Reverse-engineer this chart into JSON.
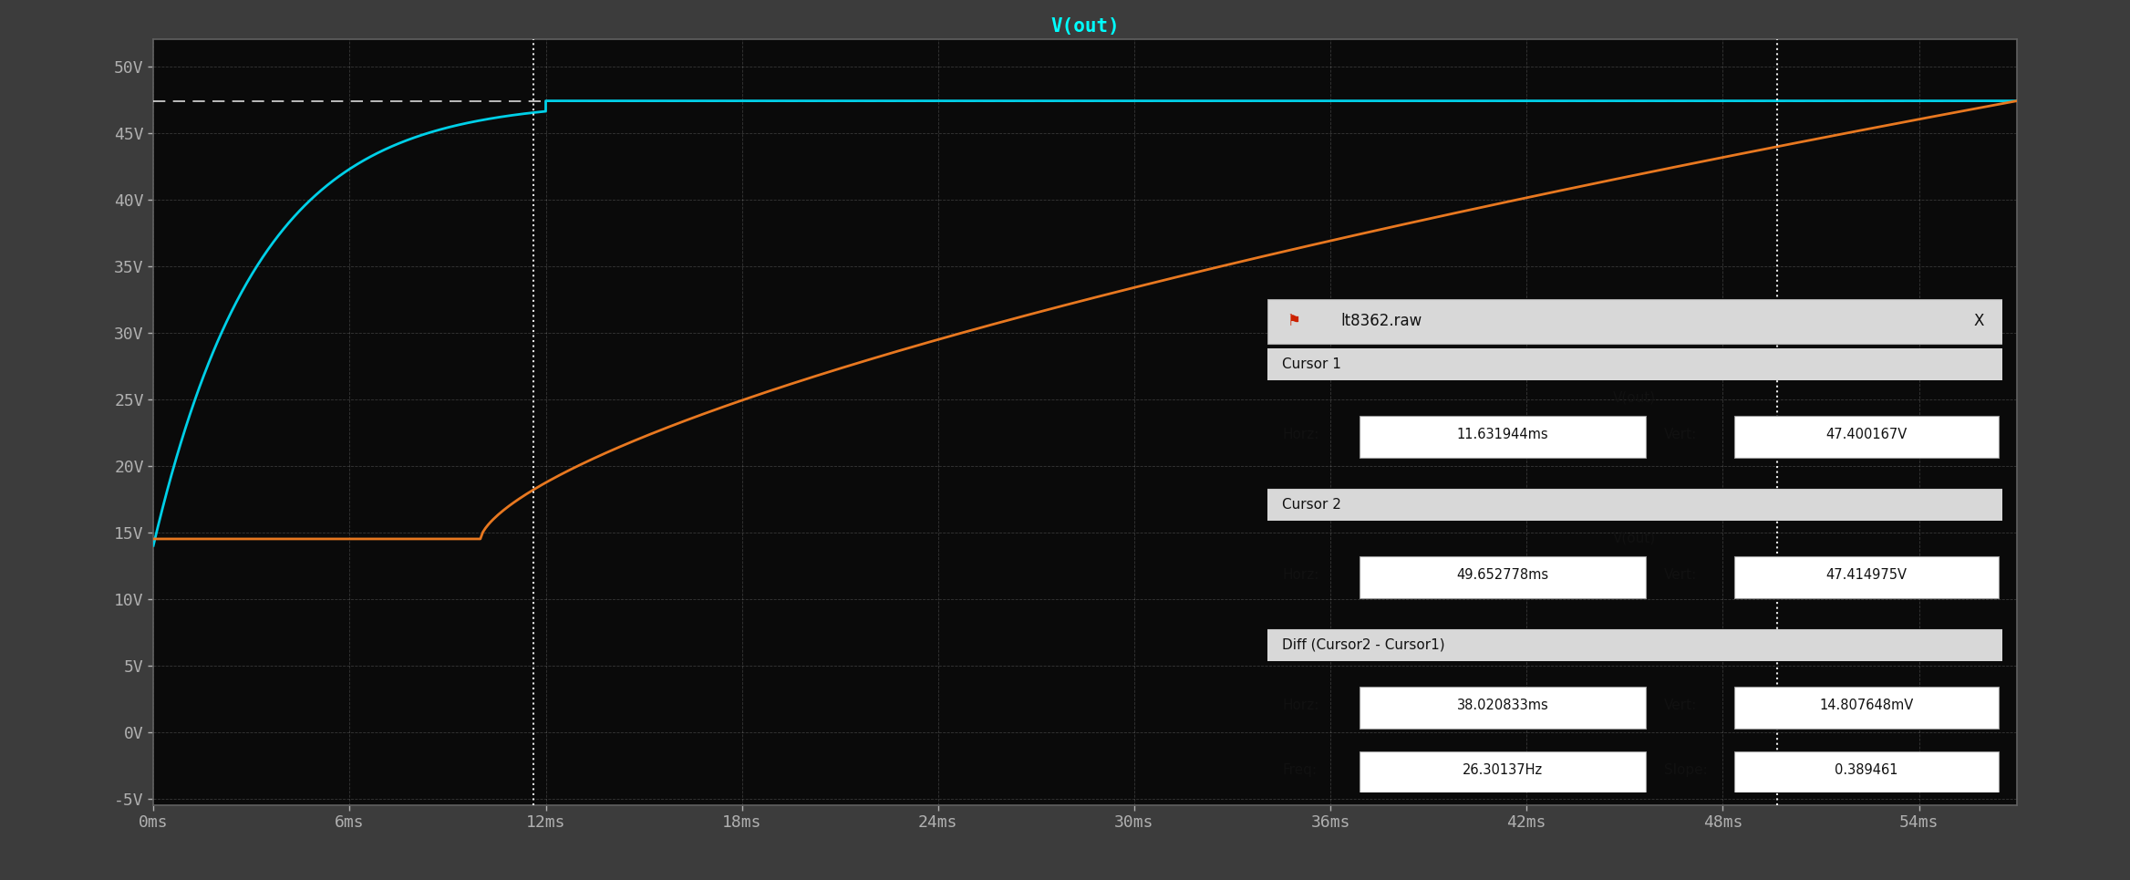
{
  "title": "V(out)",
  "bg_color": "#0a0a0a",
  "outer_bg": "#3c3c3c",
  "grid_color": "#ffffff",
  "grid_alpha": 0.18,
  "xlim": [
    0,
    57
  ],
  "ylim": [
    -5.5,
    52
  ],
  "xticks": [
    0,
    6,
    12,
    18,
    24,
    30,
    36,
    42,
    48,
    54
  ],
  "xtick_labels": [
    "0ms",
    "6ms",
    "12ms",
    "18ms",
    "24ms",
    "30ms",
    "36ms",
    "42ms",
    "48ms",
    "54ms"
  ],
  "yticks": [
    -5,
    0,
    5,
    10,
    15,
    20,
    25,
    30,
    35,
    40,
    45,
    50
  ],
  "ytick_labels": [
    "-5V",
    "0V",
    "5V",
    "10V",
    "15V",
    "20V",
    "25V",
    "30V",
    "35V",
    "40V",
    "45V",
    "50V"
  ],
  "cyan_color": "#00d0e8",
  "orange_color": "#e87820",
  "cursor1_x": 11.631944,
  "cursor2_x": 49.652778,
  "cursor_line_color": "#ffffff",
  "dashed_line_y": 47.4,
  "title_color": "#00ffff",
  "tick_color": "#b0b0b0",
  "tick_fontsize": 13,
  "box_title": "lt8362.raw",
  "cursor1_horz": "11.631944ms",
  "cursor1_vert": "47.400167V",
  "cursor2_horz": "49.652778ms",
  "cursor2_vert": "47.414975V",
  "diff_horz": "38.020833ms",
  "diff_vert": "14.807648mV",
  "diff_freq": "26.30137Hz",
  "diff_slope": "0.389461"
}
